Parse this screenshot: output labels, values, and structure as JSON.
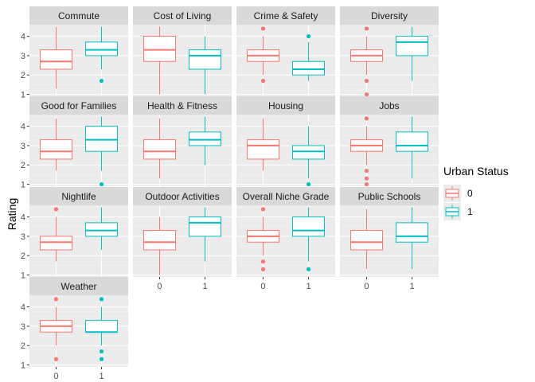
{
  "chart_data": {
    "type": "boxplot",
    "title": "",
    "xlabel": "",
    "ylabel": "Rating",
    "ylim": [
      0.9,
      4.6
    ],
    "y_ticks": [
      "1",
      "2",
      "3",
      "4"
    ],
    "categories": [
      "0",
      "1"
    ],
    "grid": true,
    "legend_position": "right",
    "legend": {
      "title": "Urban Status",
      "entries": [
        "0",
        "1"
      ],
      "colors": [
        "#F8766D",
        "#00BFC4"
      ]
    },
    "panel_background": "#EBEBEB",
    "strip_background": "#D9D9D9",
    "panels": [
      {
        "name": "Commute",
        "boxes": [
          {
            "group": "0",
            "min": 1.3,
            "q1": 2.3,
            "median": 2.7,
            "q3": 3.3,
            "max": 4.5,
            "outliers": []
          },
          {
            "group": "1",
            "min": 2.3,
            "q1": 3.0,
            "median": 3.3,
            "q3": 3.7,
            "max": 4.5,
            "outliers": [
              1.7
            ]
          }
        ]
      },
      {
        "name": "Cost of Living",
        "boxes": [
          {
            "group": "0",
            "min": 1.0,
            "q1": 2.7,
            "median": 3.3,
            "q3": 4.0,
            "max": 4.5,
            "outliers": []
          },
          {
            "group": "1",
            "min": 1.0,
            "q1": 2.3,
            "median": 3.0,
            "q3": 3.3,
            "max": 4.0,
            "outliers": []
          }
        ]
      },
      {
        "name": "Crime & Safety",
        "boxes": [
          {
            "group": "0",
            "min": 2.0,
            "q1": 2.7,
            "median": 3.0,
            "q3": 3.3,
            "max": 4.0,
            "outliers": [
              4.4,
              1.7
            ]
          },
          {
            "group": "1",
            "min": 1.7,
            "q1": 2.0,
            "median": 2.3,
            "q3": 2.7,
            "max": 3.7,
            "outliers": [
              4.0
            ]
          }
        ]
      },
      {
        "name": "Diversity",
        "boxes": [
          {
            "group": "0",
            "min": 2.0,
            "q1": 2.7,
            "median": 3.0,
            "q3": 3.3,
            "max": 4.0,
            "outliers": [
              4.4,
              1.7,
              1.0
            ]
          },
          {
            "group": "1",
            "min": 1.7,
            "q1": 3.0,
            "median": 3.7,
            "q3": 4.0,
            "max": 4.5,
            "outliers": []
          }
        ]
      },
      {
        "name": "Good for Families",
        "boxes": [
          {
            "group": "0",
            "min": 1.7,
            "q1": 2.3,
            "median": 2.7,
            "q3": 3.3,
            "max": 4.4,
            "outliers": []
          },
          {
            "group": "1",
            "min": 1.7,
            "q1": 2.7,
            "median": 3.3,
            "q3": 4.0,
            "max": 4.5,
            "outliers": [
              1.0
            ]
          }
        ]
      },
      {
        "name": "Health & Fitness",
        "boxes": [
          {
            "group": "0",
            "min": 1.3,
            "q1": 2.3,
            "median": 2.7,
            "q3": 3.3,
            "max": 4.4,
            "outliers": []
          },
          {
            "group": "1",
            "min": 2.0,
            "q1": 3.0,
            "median": 3.3,
            "q3": 3.7,
            "max": 4.5,
            "outliers": []
          }
        ]
      },
      {
        "name": "Housing",
        "boxes": [
          {
            "group": "0",
            "min": 1.7,
            "q1": 2.3,
            "median": 3.0,
            "q3": 3.3,
            "max": 4.4,
            "outliers": []
          },
          {
            "group": "1",
            "min": 1.3,
            "q1": 2.3,
            "median": 2.7,
            "q3": 3.0,
            "max": 4.0,
            "outliers": [
              1.0
            ]
          }
        ]
      },
      {
        "name": "Jobs",
        "boxes": [
          {
            "group": "0",
            "min": 2.0,
            "q1": 2.7,
            "median": 3.0,
            "q3": 3.3,
            "max": 4.0,
            "outliers": [
              4.4,
              1.7,
              1.3,
              1.0
            ]
          },
          {
            "group": "1",
            "min": 1.3,
            "q1": 2.7,
            "median": 3.0,
            "q3": 3.7,
            "max": 4.5,
            "outliers": []
          }
        ]
      },
      {
        "name": "Nightlife",
        "boxes": [
          {
            "group": "0",
            "min": 1.7,
            "q1": 2.3,
            "median": 2.7,
            "q3": 3.0,
            "max": 4.0,
            "outliers": [
              4.4
            ]
          },
          {
            "group": "1",
            "min": 2.3,
            "q1": 3.0,
            "median": 3.3,
            "q3": 3.7,
            "max": 4.5,
            "outliers": []
          }
        ]
      },
      {
        "name": "Outdoor Activities",
        "boxes": [
          {
            "group": "0",
            "min": 1.0,
            "q1": 2.3,
            "median": 2.7,
            "q3": 3.3,
            "max": 4.0,
            "outliers": []
          },
          {
            "group": "1",
            "min": 1.7,
            "q1": 3.0,
            "median": 3.7,
            "q3": 4.0,
            "max": 4.5,
            "outliers": []
          }
        ]
      },
      {
        "name": "Overall Niche Grade",
        "boxes": [
          {
            "group": "0",
            "min": 2.0,
            "q1": 2.7,
            "median": 3.0,
            "q3": 3.3,
            "max": 4.0,
            "outliers": [
              4.4,
              1.7,
              1.3
            ]
          },
          {
            "group": "1",
            "min": 1.7,
            "q1": 3.0,
            "median": 3.3,
            "q3": 4.0,
            "max": 4.5,
            "outliers": [
              1.3
            ]
          }
        ]
      },
      {
        "name": "Public Schools",
        "boxes": [
          {
            "group": "0",
            "min": 1.3,
            "q1": 2.3,
            "median": 2.7,
            "q3": 3.3,
            "max": 4.4,
            "outliers": []
          },
          {
            "group": "1",
            "min": 1.3,
            "q1": 2.7,
            "median": 3.0,
            "q3": 3.7,
            "max": 4.5,
            "outliers": []
          }
        ]
      },
      {
        "name": "Weather",
        "boxes": [
          {
            "group": "0",
            "min": 2.0,
            "q1": 2.7,
            "median": 3.0,
            "q3": 3.3,
            "max": 4.0,
            "outliers": [
              4.4,
              1.3
            ]
          },
          {
            "group": "1",
            "min": 2.0,
            "q1": 2.7,
            "median": 2.7,
            "q3": 3.3,
            "max": 4.0,
            "outliers": [
              4.4,
              1.7,
              1.3
            ]
          }
        ]
      }
    ]
  }
}
